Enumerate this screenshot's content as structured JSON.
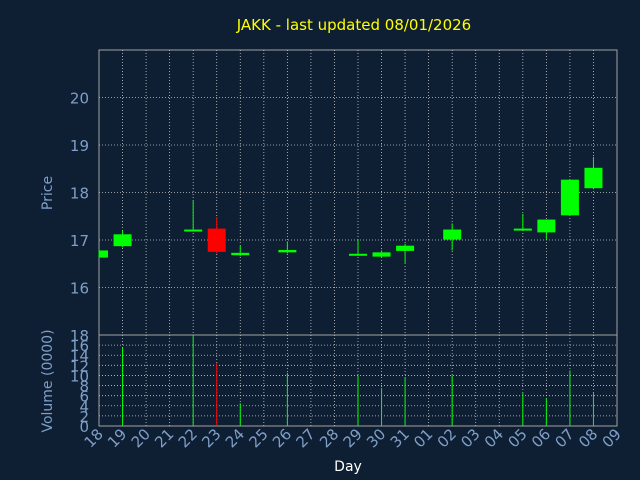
{
  "chart_data": {
    "type": "candlestick",
    "title": "JAKK - last updated 08/01/2026",
    "xlabel": "Day",
    "price_panel": {
      "ylabel": "Price",
      "ylim": [
        15.0,
        21.0
      ],
      "ticks": [
        16,
        17,
        18,
        19,
        20
      ]
    },
    "volume_panel": {
      "ylabel": "Volume (0000)",
      "ylim": [
        0,
        18
      ],
      "ticks": [
        0,
        2,
        4,
        6,
        8,
        10,
        12,
        14,
        16,
        18
      ]
    },
    "categories": [
      "18",
      "19",
      "20",
      "21",
      "22",
      "23",
      "24",
      "25",
      "26",
      "27",
      "28",
      "29",
      "30",
      "31",
      "01",
      "02",
      "03",
      "04",
      "05",
      "06",
      "07",
      "08",
      "09"
    ],
    "candles": [
      {
        "day": "18",
        "open": 16.63,
        "close": 16.78,
        "high": 16.78,
        "low": 16.63,
        "volume": 0
      },
      {
        "day": "19",
        "open": 16.87,
        "close": 17.12,
        "high": 17.2,
        "low": 16.85,
        "volume": 15.5
      },
      {
        "day": "22",
        "open": 17.22,
        "close": 17.22,
        "high": 17.83,
        "low": 17.2,
        "volume": 18.0
      },
      {
        "day": "23",
        "open": 17.24,
        "close": 16.75,
        "high": 17.48,
        "low": 16.72,
        "volume": 12.5
      },
      {
        "day": "24",
        "open": 16.68,
        "close": 16.73,
        "high": 16.88,
        "low": 16.66,
        "volume": 4.5
      },
      {
        "day": "26",
        "open": 16.74,
        "close": 16.79,
        "high": 16.97,
        "low": 16.72,
        "volume": 10.5
      },
      {
        "day": "29",
        "open": 16.68,
        "close": 16.71,
        "high": 17.0,
        "low": 16.67,
        "volume": 10.0
      },
      {
        "day": "30",
        "open": 16.65,
        "close": 16.74,
        "high": 16.78,
        "low": 16.62,
        "volume": 7.5
      },
      {
        "day": "31",
        "open": 16.77,
        "close": 16.88,
        "high": 16.92,
        "low": 16.52,
        "volume": 9.5
      },
      {
        "day": "02",
        "open": 17.01,
        "close": 17.22,
        "high": 17.35,
        "low": 16.78,
        "volume": 10.0
      },
      {
        "day": "05",
        "open": 17.24,
        "close": 17.24,
        "high": 17.55,
        "low": 17.23,
        "volume": 6.5
      },
      {
        "day": "06",
        "open": 17.16,
        "close": 17.43,
        "high": 17.43,
        "low": 17.01,
        "volume": 5.5
      },
      {
        "day": "07",
        "open": 17.52,
        "close": 18.27,
        "high": 18.27,
        "low": 17.52,
        "volume": 11.0
      },
      {
        "day": "08",
        "open": 18.09,
        "close": 18.52,
        "high": 18.75,
        "low": 18.07,
        "volume": 6.5
      }
    ],
    "colors": {
      "background": "#0f1f33",
      "grid": "#c8c8c8",
      "axis_text": "#7f9fc8",
      "title": "#ffff00",
      "up": "#00ff00",
      "down": "#ff0000",
      "frame": "#a0a0a0"
    }
  }
}
